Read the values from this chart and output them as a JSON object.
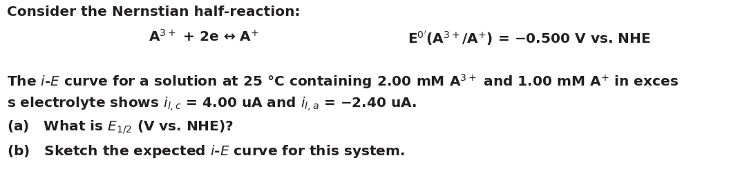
{
  "bg_color": "#ffffff",
  "text_color": "#231f20",
  "figsize": [
    10.84,
    2.71
  ],
  "dpi": 100,
  "line1": "Consider the Nernstian half-reaction:",
  "line2_left": "$\\mathregular{A}$$^{3+}$ + 2e ↔ $\\mathregular{A}$$^{+}$",
  "line2_right": "$\\mathregular{E}$$^{0'}$($\\mathregular{A}$$^{3+}$/$\\mathregular{A}$$^{+}$) = −0.500 V vs. NHE",
  "line3": "The $i$-$E$ curve for a solution at 25 °C containing 2.00 mM A$^{3+}$ and 1.00 mM A$^{+}$ in exces",
  "line4": "s electrolyte shows $i_{l,c}$ = 4.00 uA and $i_{l,a}$ = −2.40 uA.",
  "line5": "(a)   What is $E_{1/2}$ (V vs. NHE)?",
  "line6": "(b)   Sketch the expected $i$-$E$ curve for this system.",
  "font_size_main": 14.5,
  "font_weight": "bold"
}
